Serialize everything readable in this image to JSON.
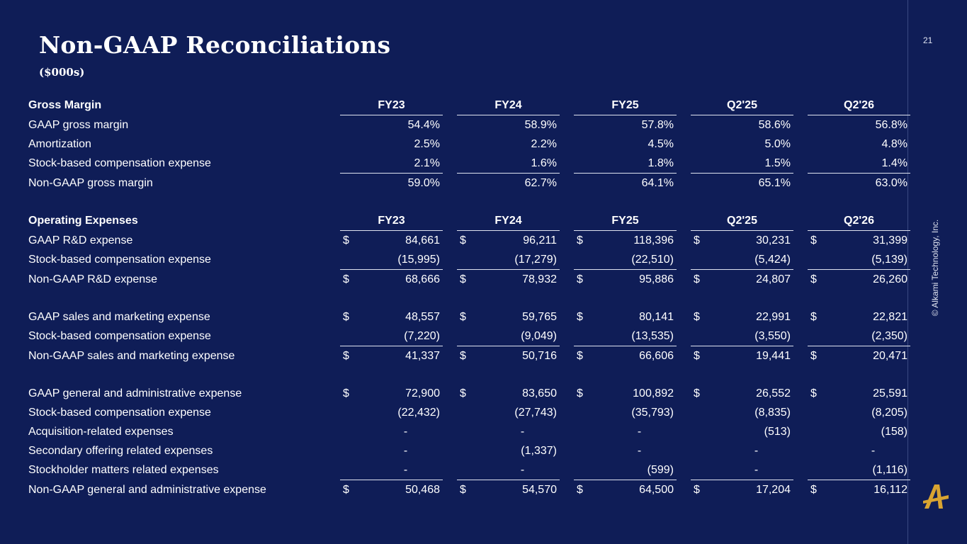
{
  "page": {
    "title": "Non-GAAP Reconciliations",
    "subtitle": "($000s)",
    "page_number": "21",
    "copyright": "© Alkami Technology, Inc.",
    "logo_letter": "A"
  },
  "periods": [
    "FY23",
    "FY24",
    "FY25",
    "Q2'25",
    "Q2'26"
  ],
  "gross_margin": {
    "header": "Gross Margin",
    "rows": [
      {
        "label": "GAAP gross margin",
        "values": [
          "54.4%",
          "58.9%",
          "57.8%",
          "58.6%",
          "56.8%"
        ]
      },
      {
        "label": "Amortization",
        "values": [
          "2.5%",
          "2.2%",
          "4.5%",
          "5.0%",
          "4.8%"
        ]
      },
      {
        "label": "Stock-based compensation expense",
        "values": [
          "2.1%",
          "1.6%",
          "1.8%",
          "1.5%",
          "1.4%"
        ]
      },
      {
        "label": "Non-GAAP gross margin",
        "values": [
          "59.0%",
          "62.7%",
          "64.1%",
          "65.1%",
          "63.0%"
        ]
      }
    ]
  },
  "operating_expenses": {
    "header": "Operating Expenses",
    "rd": [
      {
        "label": "GAAP R&D expense",
        "values": [
          "84,661",
          "96,211",
          "118,396",
          "30,231",
          "31,399"
        ]
      },
      {
        "label": "Stock-based compensation expense",
        "values": [
          "(15,995)",
          "(17,279)",
          "(22,510)",
          "(5,424)",
          "(5,139)"
        ]
      },
      {
        "label": "Non-GAAP R&D expense",
        "values": [
          "68,666",
          "78,932",
          "95,886",
          "24,807",
          "26,260"
        ]
      }
    ],
    "sm": [
      {
        "label": "GAAP sales and marketing expense",
        "values": [
          "48,557",
          "59,765",
          "80,141",
          "22,991",
          "22,821"
        ]
      },
      {
        "label": "Stock-based compensation expense",
        "values": [
          "(7,220)",
          "(9,049)",
          "(13,535)",
          "(3,550)",
          "(2,350)"
        ]
      },
      {
        "label": "Non-GAAP sales and marketing expense",
        "values": [
          "41,337",
          "50,716",
          "66,606",
          "19,441",
          "20,471"
        ]
      }
    ],
    "ga": [
      {
        "label": "GAAP general and administrative expense",
        "values": [
          "72,900",
          "83,650",
          "100,892",
          "26,552",
          "25,591"
        ]
      },
      {
        "label": "Stock-based compensation expense",
        "values": [
          "(22,432)",
          "(27,743)",
          "(35,793)",
          "(8,835)",
          "(8,205)"
        ]
      },
      {
        "label": "Acquisition-related expenses",
        "values": [
          "-",
          "-",
          "-",
          "(513)",
          "(158)"
        ]
      },
      {
        "label": "Secondary offering related expenses",
        "values": [
          "-",
          "(1,337)",
          "-",
          "-",
          "-"
        ]
      },
      {
        "label": "Stockholder matters related expenses",
        "values": [
          "-",
          "-",
          "(599)",
          "-",
          "(1,116)"
        ]
      },
      {
        "label": "Non-GAAP general and administrative expense",
        "values": [
          "50,468",
          "54,570",
          "64,500",
          "17,204",
          "16,112"
        ]
      }
    ]
  },
  "currency_symbol": "$"
}
